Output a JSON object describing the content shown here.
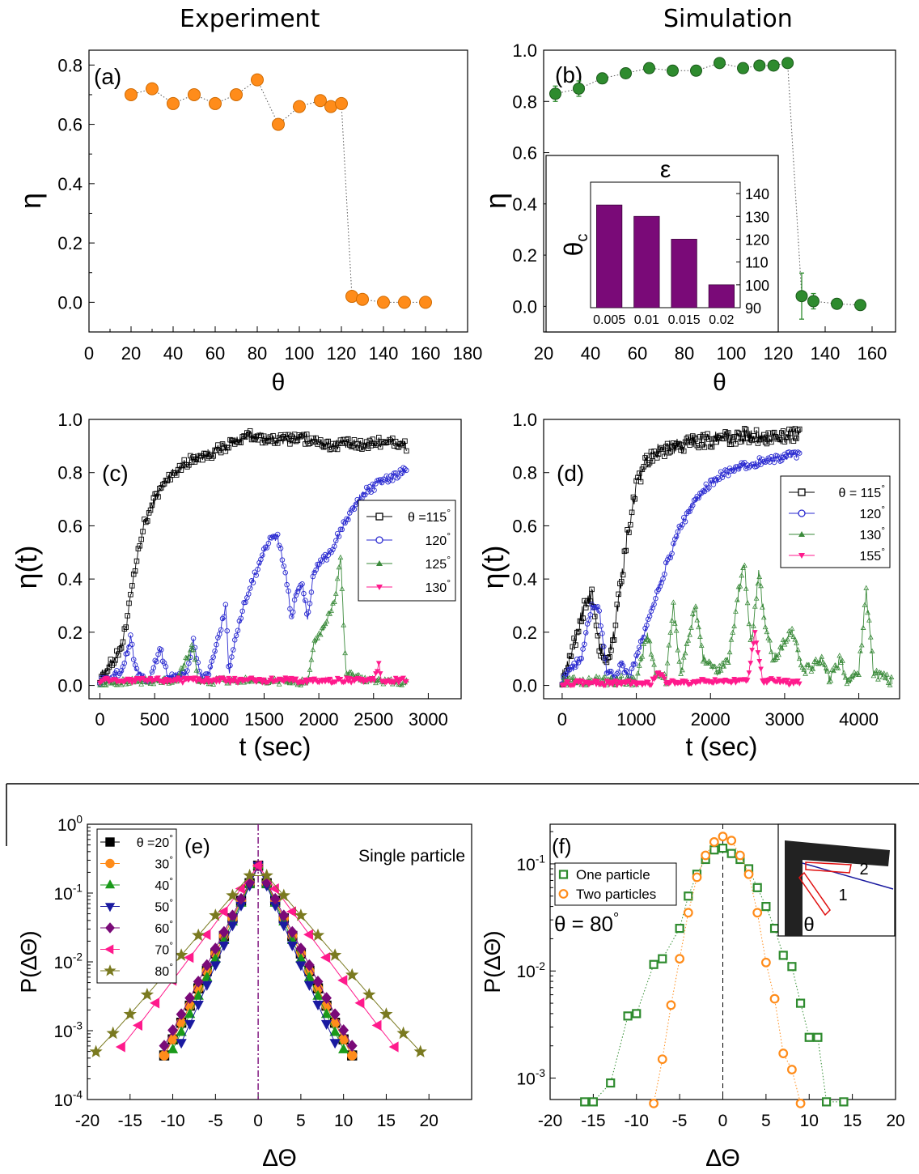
{
  "headers": {
    "experiment": "Experiment",
    "simulation": "Simulation"
  },
  "colors": {
    "orange": "#ff8c1a",
    "green": "#2e8b2e",
    "black": "#000000",
    "blue": "#2a2ad0",
    "darkgreen": "#3a8a3a",
    "pink": "#ff1a8c",
    "purple": "#7a0a78",
    "navy": "#1a1aa0",
    "olive": "#7a7a20"
  },
  "chart_data": [
    {
      "id": "a",
      "type": "scatter",
      "panel_label": "(a)",
      "xlabel": "θ",
      "ylabel": "η",
      "xlim": [
        0,
        180
      ],
      "ylim": [
        -0.1,
        0.85
      ],
      "xticks": [
        "0",
        "20",
        "40",
        "60",
        "80",
        "100",
        "120",
        "140",
        "160",
        "180"
      ],
      "yticks": [
        "0.0",
        "0.2",
        "0.4",
        "0.6",
        "0.8"
      ],
      "x": [
        20,
        30,
        40,
        50,
        60,
        70,
        80,
        90,
        100,
        110,
        115,
        120,
        125,
        130,
        140,
        150,
        160
      ],
      "y": [
        0.7,
        0.72,
        0.67,
        0.7,
        0.67,
        0.7,
        0.75,
        0.6,
        0.66,
        0.68,
        0.66,
        0.67,
        0.02,
        0.01,
        0.0,
        0.0,
        0.0
      ]
    },
    {
      "id": "b",
      "type": "scatter",
      "panel_label": "(b)",
      "xlabel": "θ",
      "ylabel": "η",
      "xlim": [
        20,
        170
      ],
      "ylim": [
        -0.1,
        1.0
      ],
      "xticks": [
        "20",
        "40",
        "60",
        "80",
        "100",
        "120",
        "140",
        "160"
      ],
      "yticks": [
        "0.0",
        "0.2",
        "0.4",
        "0.6",
        "0.8",
        "1.0"
      ],
      "x": [
        25,
        35,
        45,
        55,
        65,
        75,
        85,
        95,
        105,
        112,
        118,
        124,
        130,
        135,
        145,
        155
      ],
      "y": [
        0.83,
        0.85,
        0.89,
        0.91,
        0.93,
        0.92,
        0.92,
        0.95,
        0.93,
        0.94,
        0.94,
        0.95,
        0.04,
        0.02,
        0.01,
        0.005
      ],
      "err": [
        0.03,
        0.03,
        0.02,
        0.02,
        0.01,
        0.01,
        0.01,
        0.01,
        0.01,
        0.01,
        0.01,
        0.01,
        0.09,
        0.03,
        0.01,
        0.01
      ],
      "inset": {
        "type": "bar",
        "title": "ε",
        "ylabel": "θc",
        "categories": [
          "0.005",
          "0.01",
          "0.015",
          "0.02"
        ],
        "values": [
          135,
          130,
          120,
          100
        ],
        "ylim": [
          90,
          145
        ],
        "yticks": [
          "90",
          "100",
          "110",
          "120",
          "130",
          "140"
        ]
      }
    },
    {
      "id": "c",
      "type": "line",
      "panel_label": "(c)",
      "xlabel": "t (sec)",
      "ylabel": "η(t)",
      "xlim": [
        -100,
        3300
      ],
      "ylim": [
        -0.05,
        1.0
      ],
      "xticks": [
        "0",
        "500",
        "1000",
        "1500",
        "2000",
        "2500",
        "3000"
      ],
      "yticks": [
        "0.0",
        "0.2",
        "0.4",
        "0.6",
        "0.8",
        "1.0"
      ],
      "series": [
        {
          "name": "θ = 115°",
          "legend": "θ =115°",
          "t_end": 2800,
          "pts": [
            [
              0,
              0.03
            ],
            [
              100,
              0.08
            ],
            [
              200,
              0.15
            ],
            [
              250,
              0.25
            ],
            [
              300,
              0.38
            ],
            [
              350,
              0.5
            ],
            [
              400,
              0.6
            ],
            [
              500,
              0.7
            ],
            [
              600,
              0.77
            ],
            [
              700,
              0.81
            ],
            [
              800,
              0.84
            ],
            [
              900,
              0.86
            ],
            [
              1000,
              0.87
            ],
            [
              1100,
              0.89
            ],
            [
              1200,
              0.91
            ],
            [
              1300,
              0.93
            ],
            [
              1400,
              0.94
            ],
            [
              1600,
              0.92
            ],
            [
              1800,
              0.93
            ],
            [
              2000,
              0.92
            ],
            [
              2100,
              0.9
            ],
            [
              2200,
              0.91
            ],
            [
              2400,
              0.9
            ],
            [
              2600,
              0.92
            ],
            [
              2800,
              0.9
            ]
          ],
          "noise": 0.02
        },
        {
          "name": "120°",
          "legend": "120°",
          "t_end": 2800,
          "pts": [
            [
              0,
              0.02
            ],
            [
              200,
              0.05
            ],
            [
              280,
              0.18
            ],
            [
              330,
              0.05
            ],
            [
              450,
              0.02
            ],
            [
              550,
              0.14
            ],
            [
              620,
              0.03
            ],
            [
              800,
              0.05
            ],
            [
              850,
              0.17
            ],
            [
              920,
              0.03
            ],
            [
              1000,
              0.05
            ],
            [
              1100,
              0.2
            ],
            [
              1150,
              0.3
            ],
            [
              1180,
              0.05
            ],
            [
              1250,
              0.2
            ],
            [
              1350,
              0.35
            ],
            [
              1450,
              0.45
            ],
            [
              1550,
              0.55
            ],
            [
              1620,
              0.56
            ],
            [
              1700,
              0.42
            ],
            [
              1750,
              0.25
            ],
            [
              1800,
              0.36
            ],
            [
              1850,
              0.37
            ],
            [
              1900,
              0.25
            ],
            [
              1950,
              0.43
            ],
            [
              2000,
              0.45
            ],
            [
              2100,
              0.5
            ],
            [
              2200,
              0.58
            ],
            [
              2300,
              0.66
            ],
            [
              2400,
              0.72
            ],
            [
              2550,
              0.76
            ],
            [
              2700,
              0.79
            ],
            [
              2800,
              0.81
            ]
          ],
          "noise": 0.015
        },
        {
          "name": "125°",
          "legend": "125°",
          "t_end": 2800,
          "pts": [
            [
              0,
              0.01
            ],
            [
              700,
              0.02
            ],
            [
              850,
              0.15
            ],
            [
              900,
              0.01
            ],
            [
              1200,
              0.02
            ],
            [
              1900,
              0.01
            ],
            [
              1950,
              0.15
            ],
            [
              2050,
              0.22
            ],
            [
              2150,
              0.33
            ],
            [
              2200,
              0.48
            ],
            [
              2230,
              0.2
            ],
            [
              2250,
              0.05
            ],
            [
              2400,
              0.02
            ],
            [
              2800,
              0.01
            ]
          ],
          "noise": 0.012
        },
        {
          "name": "130°",
          "legend": "130°",
          "t_end": 2800,
          "pts": [
            [
              0,
              0.02
            ],
            [
              2500,
              0.02
            ],
            [
              2550,
              0.08
            ],
            [
              2570,
              0.02
            ],
            [
              2800,
              0.02
            ]
          ],
          "noise": 0.01
        }
      ]
    },
    {
      "id": "d",
      "type": "line",
      "panel_label": "(d)",
      "xlabel": "t (sec)",
      "ylabel": "η(t)",
      "xlim": [
        -250,
        4550
      ],
      "ylim": [
        -0.05,
        1.0
      ],
      "xticks": [
        "0",
        "1000",
        "2000",
        "3000",
        "4000"
      ],
      "yticks": [
        "0.0",
        "0.2",
        "0.4",
        "0.6",
        "0.8",
        "1.0"
      ],
      "series": [
        {
          "name": "θ = 115°",
          "legend": "θ = 115°",
          "t_end": 3200,
          "pts": [
            [
              0,
              0.03
            ],
            [
              150,
              0.15
            ],
            [
              300,
              0.3
            ],
            [
              400,
              0.35
            ],
            [
              500,
              0.15
            ],
            [
              600,
              0.08
            ],
            [
              700,
              0.2
            ],
            [
              800,
              0.4
            ],
            [
              900,
              0.6
            ],
            [
              1000,
              0.75
            ],
            [
              1100,
              0.82
            ],
            [
              1200,
              0.87
            ],
            [
              1400,
              0.89
            ],
            [
              1600,
              0.9
            ],
            [
              1800,
              0.92
            ],
            [
              2200,
              0.93
            ],
            [
              2600,
              0.94
            ],
            [
              3000,
              0.93
            ],
            [
              3200,
              0.95
            ]
          ],
          "noise": 0.03
        },
        {
          "name": "120°",
          "legend": "120°",
          "t_end": 3200,
          "pts": [
            [
              0,
              0.02
            ],
            [
              250,
              0.1
            ],
            [
              400,
              0.3
            ],
            [
              500,
              0.28
            ],
            [
              600,
              0.05
            ],
            [
              700,
              0.03
            ],
            [
              800,
              0.08
            ],
            [
              900,
              0.03
            ],
            [
              1000,
              0.1
            ],
            [
              1200,
              0.28
            ],
            [
              1400,
              0.45
            ],
            [
              1600,
              0.6
            ],
            [
              1800,
              0.7
            ],
            [
              2000,
              0.76
            ],
            [
              2200,
              0.8
            ],
            [
              2500,
              0.83
            ],
            [
              2800,
              0.85
            ],
            [
              3200,
              0.87
            ]
          ],
          "noise": 0.015
        },
        {
          "name": "130°",
          "legend": "130°",
          "t_end": 4450,
          "pts": [
            [
              0,
              0.01
            ],
            [
              1000,
              0.02
            ],
            [
              1150,
              0.2
            ],
            [
              1250,
              0.05
            ],
            [
              1400,
              0.02
            ],
            [
              1500,
              0.3
            ],
            [
              1600,
              0.05
            ],
            [
              1800,
              0.3
            ],
            [
              1900,
              0.1
            ],
            [
              2100,
              0.05
            ],
            [
              2250,
              0.1
            ],
            [
              2350,
              0.3
            ],
            [
              2450,
              0.47
            ],
            [
              2550,
              0.15
            ],
            [
              2650,
              0.42
            ],
            [
              2750,
              0.2
            ],
            [
              2850,
              0.1
            ],
            [
              3100,
              0.2
            ],
            [
              3250,
              0.05
            ],
            [
              3500,
              0.1
            ],
            [
              3600,
              0.02
            ],
            [
              3750,
              0.1
            ],
            [
              3850,
              0.01
            ],
            [
              4000,
              0.05
            ],
            [
              4100,
              0.35
            ],
            [
              4200,
              0.05
            ],
            [
              4450,
              0.01
            ]
          ],
          "noise": 0.02
        },
        {
          "name": "155°",
          "legend": "155°",
          "t_end": 3200,
          "pts": [
            [
              0,
              0.01
            ],
            [
              1200,
              0.01
            ],
            [
              1300,
              0.05
            ],
            [
              1400,
              0.01
            ],
            [
              2500,
              0.02
            ],
            [
              2600,
              0.2
            ],
            [
              2700,
              0.02
            ],
            [
              3200,
              0.01
            ]
          ],
          "noise": 0.01
        }
      ]
    },
    {
      "id": "e",
      "type": "scatter",
      "panel_label": "(e)",
      "annotation": "Single particle",
      "xlabel": "ΔΘ",
      "ylabel": "P(ΔΘ)",
      "yscale": "log",
      "xlim": [
        -20,
        25
      ],
      "ylim_log10": [
        -4,
        0
      ],
      "xticks": [
        "-20",
        "-15",
        "-10",
        "-5",
        "0",
        "5",
        "10",
        "15",
        "20"
      ],
      "yticks": [
        "10^-4",
        "10^-3",
        "10^-2",
        "10^-1",
        "10^0"
      ],
      "series": [
        {
          "name": "θ =20°",
          "marker": "square",
          "sigma": 1.7
        },
        {
          "name": "30°",
          "marker": "circle",
          "sigma": 1.7
        },
        {
          "name": "40°",
          "marker": "triangle-up",
          "sigma": 1.6
        },
        {
          "name": "50°",
          "marker": "triangle-down",
          "sigma": 1.5
        },
        {
          "name": "60°",
          "marker": "diamond",
          "sigma": 1.8
        },
        {
          "name": "70°",
          "marker": "triangle-left",
          "sigma": 2.6
        },
        {
          "name": "80°",
          "marker": "star",
          "sigma": 3.0
        }
      ]
    },
    {
      "id": "f",
      "type": "scatter",
      "panel_label": "(f)",
      "annotation": "θ = 80°",
      "xlabel": "ΔΘ",
      "ylabel": "P(ΔΘ)",
      "yscale": "log",
      "xlim": [
        -20,
        20
      ],
      "ylim_log10": [
        -3.2,
        -0.63
      ],
      "xticks": [
        "-20",
        "-15",
        "-10",
        "-5",
        "0",
        "5",
        "10",
        "15",
        "20"
      ],
      "yticks": [
        "10^-3",
        "10^-2",
        "10^-1"
      ],
      "inset_labels": {
        "one": "1",
        "two": "2",
        "angle": "θ"
      },
      "series": [
        {
          "name": "One particle",
          "x": [
            -16,
            -15,
            -13,
            -11,
            -10,
            -8,
            -7,
            -5,
            -4,
            -3,
            -2,
            -1,
            0,
            1,
            2,
            3,
            4,
            5,
            6,
            7,
            8,
            9,
            10,
            11,
            12,
            14
          ],
          "y": [
            0.0006,
            0.0006,
            0.0009,
            0.0038,
            0.004,
            0.0115,
            0.013,
            0.025,
            0.05,
            0.08,
            0.11,
            0.135,
            0.14,
            0.125,
            0.11,
            0.09,
            0.06,
            0.04,
            0.025,
            0.014,
            0.011,
            0.005,
            0.0024,
            0.0024,
            0.0006,
            0.0006
          ]
        },
        {
          "name": "Two particles",
          "x": [
            -8,
            -7,
            -6,
            -5,
            -4,
            -3,
            -2,
            -1,
            0,
            1,
            2,
            3,
            4,
            5,
            6,
            7,
            8,
            9
          ],
          "y": [
            0.00058,
            0.0015,
            0.0048,
            0.013,
            0.035,
            0.075,
            0.12,
            0.16,
            0.18,
            0.165,
            0.12,
            0.08,
            0.035,
            0.012,
            0.0055,
            0.0017,
            0.0012,
            0.00058
          ]
        }
      ]
    }
  ]
}
